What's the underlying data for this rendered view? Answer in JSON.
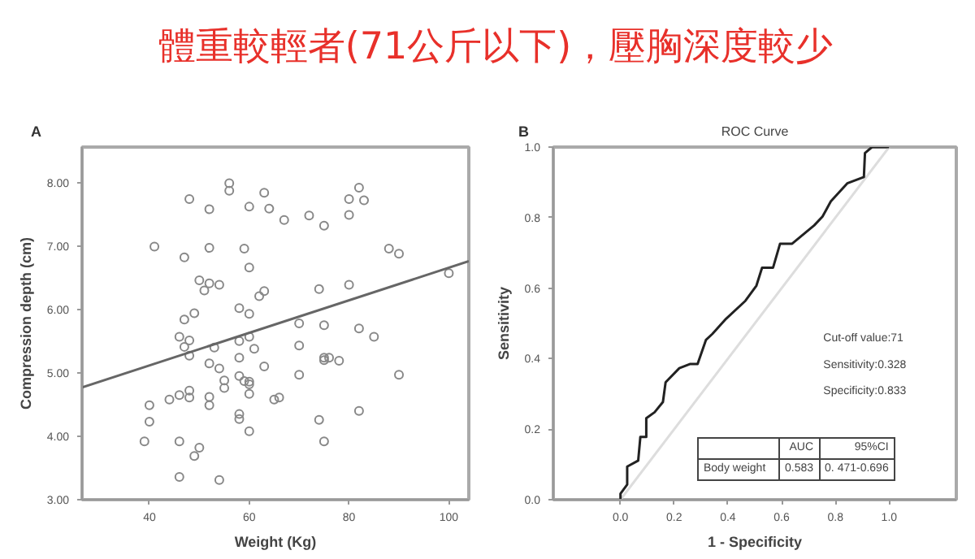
{
  "chart_data": [
    {
      "type": "scatter",
      "title": "體重較輕者(71公斤以下)，壓胸深度較少",
      "xlabel": "Weight (Kg)",
      "ylabel": "Compression depth (cm)",
      "annotations": [
        "A"
      ],
      "xlim": [
        26.5,
        104
      ],
      "xticks": [
        40,
        60,
        80,
        100
      ],
      "ylim": [
        3,
        8.56
      ],
      "yticks": [
        {
          "value": 3,
          "label": "3.00"
        },
        {
          "value": 4,
          "label": "4.00"
        },
        {
          "value": 5,
          "label": "5.00"
        },
        {
          "value": 6,
          "label": "6.00"
        },
        {
          "value": 7,
          "label": "7.00"
        },
        {
          "value": 8,
          "label": "8.00"
        }
      ],
      "grid": false,
      "marker": "circle",
      "series": [
        {
          "color": "#888888",
          "x": [
            39,
            40,
            40,
            41,
            44,
            46,
            46,
            46,
            46,
            47,
            47,
            47,
            48,
            48,
            48,
            48,
            48,
            49,
            49,
            50,
            50,
            51,
            52,
            52,
            52,
            52,
            52,
            52,
            53,
            54,
            54,
            54,
            55,
            55,
            56,
            56,
            58,
            58,
            58,
            58,
            58,
            58,
            59,
            59,
            60,
            60,
            60,
            60,
            60,
            60,
            60,
            60,
            61,
            62,
            63,
            63,
            63,
            64,
            65,
            66,
            67,
            70,
            70,
            70,
            72,
            74,
            74,
            75,
            75,
            75,
            75,
            75,
            76,
            78,
            80,
            80,
            80,
            82,
            82,
            82,
            83,
            85,
            88,
            90,
            90,
            100
          ],
          "values": [
            3.92,
            4.49,
            4.23,
            6.99,
            4.58,
            3.92,
            4.65,
            3.36,
            5.57,
            5.84,
            6.82,
            5.41,
            7.74,
            5.51,
            5.27,
            4.72,
            4.61,
            5.94,
            3.69,
            6.46,
            3.82,
            6.3,
            7.58,
            6.97,
            6.41,
            5.15,
            4.62,
            4.49,
            5.4,
            6.39,
            5.07,
            3.31,
            4.88,
            4.76,
            7.99,
            7.87,
            6.02,
            5.5,
            5.24,
            4.95,
            4.35,
            4.27,
            6.96,
            4.87,
            7.62,
            6.66,
            5.93,
            5.57,
            4.86,
            4.82,
            4.67,
            4.08,
            5.38,
            6.21,
            7.84,
            6.29,
            5.1,
            7.59,
            4.58,
            4.61,
            7.41,
            5.78,
            5.43,
            4.97,
            7.48,
            6.32,
            4.26,
            7.32,
            5.75,
            5.24,
            5.2,
            3.92,
            5.24,
            5.19,
            7.74,
            7.49,
            6.39,
            7.92,
            5.7,
            4.4,
            7.72,
            5.57,
            6.96,
            6.88,
            4.97,
            6.57
          ]
        },
        {
          "type": "line",
          "color": "#666666",
          "x": [
            26.5,
            104
          ],
          "values": [
            4.77,
            6.76
          ],
          "marker": "none"
        }
      ]
    },
    {
      "type": "line",
      "title": "ROC Curve",
      "xlabel": "1 - Specificity",
      "ylabel": "Sensitivity",
      "annotations": [
        "B",
        "Cut-off value:71",
        "Sensitivity:0.328",
        "Specificity:0.833",
        "AUC",
        "95%CI",
        "Body weight",
        "0.583",
        "0. 471-0.696"
      ],
      "xlim": [
        -0.25,
        1.25
      ],
      "ylim": [
        0,
        1
      ],
      "xticks": [
        {
          "value": 0,
          "label": "0.0"
        },
        {
          "value": 0.2,
          "label": "0.2"
        },
        {
          "value": 0.4,
          "label": "0.4"
        },
        {
          "value": 0.6,
          "label": "0.6"
        },
        {
          "value": 0.8,
          "label": "0.8"
        },
        {
          "value": 1,
          "label": "1.0"
        }
      ],
      "yticks": [
        {
          "value": 0,
          "label": "0.0"
        },
        {
          "value": 0.2,
          "label": "0.2"
        },
        {
          "value": 0.4,
          "label": "0.4"
        },
        {
          "value": 0.6,
          "label": "0.6"
        },
        {
          "value": 0.8,
          "label": "0.8"
        },
        {
          "value": 1,
          "label": "1.0"
        }
      ],
      "grid": false,
      "series": [
        {
          "color": "#dddddd",
          "x": [
            0,
            1
          ],
          "values": [
            0,
            1
          ]
        },
        {
          "color": "#222222",
          "x": [
            0,
            0,
            0.025,
            0.025,
            0.066,
            0.074,
            0.096,
            0.096,
            0.127,
            0.158,
            0.168,
            0.219,
            0.26,
            0.287,
            0.318,
            0.342,
            0.393,
            0.465,
            0.506,
            0.527,
            0.568,
            0.594,
            0.639,
            0.721,
            0.752,
            0.783,
            0.844,
            0.906,
            0.91,
            0.936,
            1.0
          ],
          "values": [
            0,
            0.017,
            0.043,
            0.094,
            0.111,
            0.178,
            0.178,
            0.231,
            0.248,
            0.277,
            0.333,
            0.373,
            0.385,
            0.385,
            0.453,
            0.47,
            0.513,
            0.564,
            0.607,
            0.658,
            0.658,
            0.726,
            0.726,
            0.778,
            0.803,
            0.846,
            0.897,
            0.915,
            0.983,
            1.0,
            1.0
          ]
        }
      ]
    }
  ]
}
